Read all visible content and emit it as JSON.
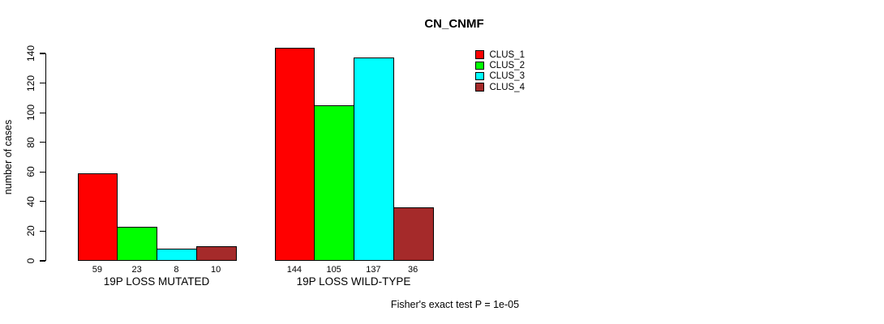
{
  "chart_data": {
    "type": "bar",
    "title": "CN_CNMF",
    "xlabel": "",
    "ylabel": "number of cases",
    "ylim": [
      0,
      140
    ],
    "yticks": [
      0,
      20,
      40,
      60,
      80,
      100,
      120,
      140
    ],
    "grid": false,
    "legend_position": "top-right",
    "series": [
      {
        "name": "CLUS_1",
        "color": "#FF0000"
      },
      {
        "name": "CLUS_2",
        "color": "#00FF00"
      },
      {
        "name": "CLUS_3",
        "color": "#00FFFF"
      },
      {
        "name": "CLUS_4",
        "color": "#A52A2A"
      }
    ],
    "categories": [
      "19P LOSS MUTATED",
      "19P LOSS WILD-TYPE"
    ],
    "groups": [
      {
        "label": "19P LOSS MUTATED",
        "values": [
          59,
          23,
          8,
          10
        ]
      },
      {
        "label": "19P LOSS WILD-TYPE",
        "values": [
          144,
          105,
          137,
          36
        ]
      }
    ],
    "bar_value_labels_shown": true,
    "annotation": "Fisher's exact test P = 1e-05"
  },
  "colors": {
    "background": "#FFFFFF",
    "text": "#000000",
    "bar_border": "#000000",
    "axis": "#000000"
  }
}
